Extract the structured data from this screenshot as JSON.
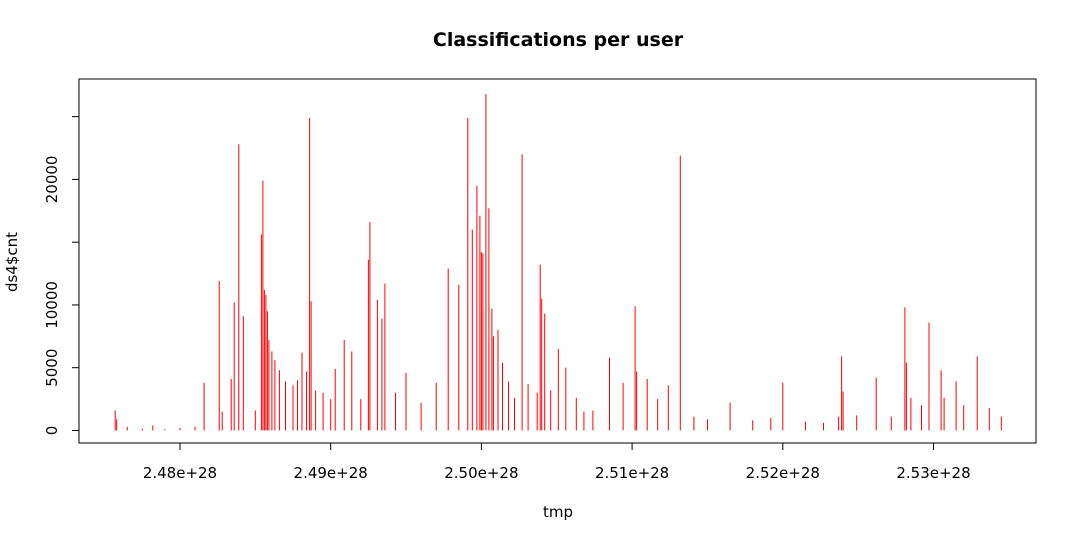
{
  "chart_data": {
    "type": "bar",
    "title": "Classifications per user",
    "xlabel": "tmp",
    "ylabel": "ds4$cnt",
    "x_ticks": [
      2.48e+28,
      2.49e+28,
      2.5e+28,
      2.51e+28,
      2.52e+28,
      2.53e+28
    ],
    "x_tick_labels": [
      "2.48e+28",
      "2.49e+28",
      "2.50e+28",
      "2.51e+28",
      "2.52e+28",
      "2.53e+28"
    ],
    "y_ticks": [
      0,
      5000,
      10000,
      15000,
      20000,
      25000
    ],
    "y_tick_labels": [
      "0",
      "5000",
      "10000",
      "",
      "20000",
      ""
    ],
    "xlim": [
      2.4733e+28,
      2.5368e+28
    ],
    "ylim": [
      -1000,
      28000
    ],
    "grid": false,
    "legend": "none",
    "color": "#ff0000",
    "series": [
      {
        "x": [
          2.4757e+28,
          2.4758e+28,
          2.4765e+28,
          2.4775e+28,
          2.4782e+28,
          2.479e+28,
          2.48e+28,
          2.481e+28,
          2.4816e+28,
          2.4826e+28,
          2.4828e+28,
          2.4834e+28,
          2.4836e+28,
          2.4839e+28,
          2.4842e+28,
          2.485e+28,
          2.4854e+28,
          2.4855e+28,
          2.4856e+28,
          2.4857e+28,
          2.4858e+28,
          2.4859e+28,
          2.4861e+28,
          2.4863e+28,
          2.4866e+28,
          2.487e+28,
          2.4875e+28,
          2.4878e+28,
          2.4881e+28,
          2.4884e+28,
          2.4886e+28,
          2.4887e+28,
          2.489e+28,
          2.4895e+28,
          2.49e+28,
          2.4903e+28,
          2.4909e+28,
          2.4914e+28,
          2.492e+28,
          2.4925e+28,
          2.4926e+28,
          2.4931e+28,
          2.4934e+28,
          2.4936e+28,
          2.4943e+28,
          2.495e+28,
          2.496e+28,
          2.497e+28,
          2.4978e+28,
          2.4985e+28,
          2.4991e+28,
          2.4994e+28,
          2.4997e+28,
          2.4999e+28,
          2.5e+28,
          2.5001e+28,
          2.5003e+28,
          2.5005e+28,
          2.5007e+28,
          2.5008e+28,
          2.5011e+28,
          2.5014e+28,
          2.5018e+28,
          2.5022e+28,
          2.5027e+28,
          2.5031e+28,
          2.5037e+28,
          2.5039e+28,
          2.504e+28,
          2.5042e+28,
          2.5046e+28,
          2.5051e+28,
          2.5056e+28,
          2.5063e+28,
          2.5068e+28,
          2.5074e+28,
          2.5085e+28,
          2.5094e+28,
          2.5102e+28,
          2.5103e+28,
          2.511e+28,
          2.5117e+28,
          2.5124e+28,
          2.5132e+28,
          2.5141e+28,
          2.515e+28,
          2.5165e+28,
          2.518e+28,
          2.5192e+28,
          2.52e+28,
          2.5215e+28,
          2.5227e+28,
          2.5237e+28,
          2.5239e+28,
          2.524e+28,
          2.5249e+28,
          2.5262e+28,
          2.5272e+28,
          2.5281e+28,
          2.5282e+28,
          2.5285e+28,
          2.5292e+28,
          2.5297e+28,
          2.5305e+28,
          2.5307e+28,
          2.5315e+28,
          2.532e+28,
          2.5329e+28,
          2.5337e+28,
          2.5345e+28
        ],
        "values": [
          1600,
          900,
          300,
          150,
          400,
          100,
          200,
          300,
          3800,
          11900,
          1500,
          4100,
          10200,
          22800,
          9100,
          1600,
          15600,
          19900,
          11200,
          10800,
          9500,
          7200,
          6300,
          5600,
          4800,
          3900,
          3600,
          4000,
          6200,
          4700,
          24900,
          10300,
          3200,
          3000,
          2500,
          4900,
          7200,
          6300,
          2500,
          13600,
          16600,
          10400,
          8900,
          11700,
          3000,
          4600,
          2200,
          3800,
          12900,
          11600,
          24900,
          16000,
          19500,
          17100,
          14200,
          14100,
          26800,
          17700,
          9700,
          7500,
          8000,
          5400,
          3900,
          2600,
          22000,
          3700,
          3000,
          13200,
          10500,
          9300,
          3200,
          6500,
          5000,
          2600,
          1500,
          1600,
          5800,
          3800,
          9900,
          4700,
          4100,
          2500,
          3600,
          21900,
          1100,
          900,
          2200,
          800,
          1000,
          3800,
          700,
          600,
          1100,
          5900,
          3100,
          1200,
          4200,
          1100,
          9800,
          5400,
          2600,
          2000,
          8600,
          4800,
          2600,
          3900,
          2000,
          5900,
          1800,
          1100
        ]
      }
    ]
  }
}
